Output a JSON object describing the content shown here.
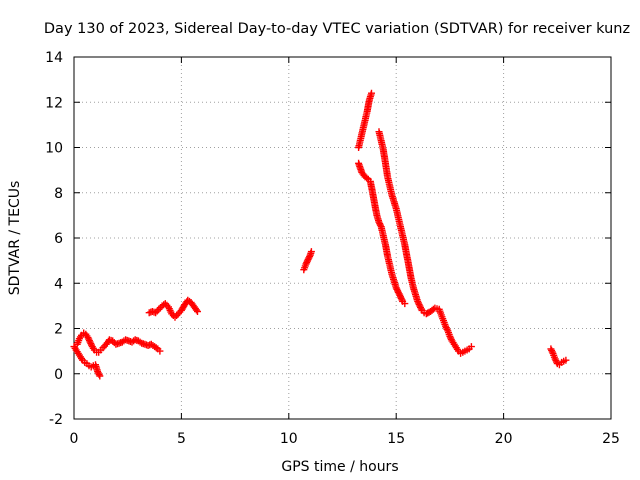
{
  "chart_data": {
    "type": "scatter",
    "title": "Day 130 of 2023, Sidereal Day-to-day VTEC variation (SDTVAR) for receiver kunz",
    "xlabel": "GPS time / hours",
    "ylabel": "SDTVAR / TECUs",
    "xlim": [
      0,
      25
    ],
    "ylim": [
      -2,
      14
    ],
    "x_ticks": [
      "0",
      "5",
      "10",
      "15",
      "20",
      "25"
    ],
    "y_ticks": [
      "-2",
      "0",
      "2",
      "4",
      "6",
      "8",
      "10",
      "12",
      "14"
    ],
    "grid": true,
    "marker": "plus",
    "colors": {
      "series": "#ff0000",
      "grid": "#a0a0a0",
      "frame": "#000000"
    },
    "series": [
      {
        "name": "kunz",
        "segments": [
          {
            "x": [
              0.0,
              0.1,
              0.2,
              0.3,
              0.4,
              0.5,
              0.6,
              0.7,
              0.8,
              0.9,
              1.0,
              1.1,
              1.2
            ],
            "y": [
              1.2,
              1.05,
              0.9,
              0.75,
              0.6,
              0.5,
              0.45,
              0.35,
              0.3,
              0.35,
              0.4,
              0.1,
              -0.1
            ]
          },
          {
            "x": [
              0.15,
              0.25,
              0.35,
              0.45,
              0.55,
              0.65,
              0.75,
              0.85,
              0.95,
              1.05,
              1.15,
              1.25,
              1.35,
              1.5,
              1.65,
              1.8,
              1.95,
              2.1,
              2.25,
              2.4,
              2.55,
              2.7,
              2.85,
              3.0,
              3.15,
              3.3,
              3.45,
              3.6,
              3.75,
              3.9,
              4.0
            ],
            "y": [
              1.3,
              1.55,
              1.7,
              1.8,
              1.75,
              1.6,
              1.4,
              1.2,
              1.05,
              0.95,
              0.95,
              1.05,
              1.15,
              1.3,
              1.5,
              1.45,
              1.3,
              1.35,
              1.4,
              1.5,
              1.45,
              1.4,
              1.5,
              1.45,
              1.35,
              1.3,
              1.25,
              1.3,
              1.2,
              1.1,
              1.0
            ]
          },
          {
            "x": [
              3.5,
              3.65,
              3.8,
              3.95,
              4.1,
              4.25,
              4.4,
              4.55,
              4.7,
              4.85,
              5.0,
              5.15,
              5.3,
              5.45,
              5.6,
              5.75
            ],
            "y": [
              2.7,
              2.75,
              2.7,
              2.85,
              3.0,
              3.1,
              2.95,
              2.65,
              2.5,
              2.65,
              2.8,
              3.05,
              3.25,
              3.15,
              2.95,
              2.75
            ]
          },
          {
            "x": [
              10.7,
              10.8,
              10.9,
              11.0,
              11.05
            ],
            "y": [
              4.6,
              4.85,
              5.05,
              5.25,
              5.4
            ]
          },
          {
            "x": [
              13.25,
              13.35,
              13.45,
              13.55,
              13.65,
              13.75,
              13.85
            ],
            "y": [
              10.0,
              10.4,
              10.8,
              11.2,
              11.6,
              12.1,
              12.4
            ]
          },
          {
            "x": [
              13.25,
              13.4,
              13.55,
              13.7,
              13.8,
              13.9,
              14.0,
              14.1,
              14.2,
              14.3,
              14.4,
              14.5,
              14.6,
              14.7,
              14.8,
              14.9,
              15.0,
              15.1,
              15.2,
              15.3,
              15.4
            ],
            "y": [
              9.3,
              8.9,
              8.7,
              8.6,
              8.5,
              8.0,
              7.5,
              7.0,
              6.7,
              6.5,
              6.1,
              5.7,
              5.2,
              4.8,
              4.4,
              4.1,
              3.8,
              3.6,
              3.4,
              3.2,
              3.1
            ]
          },
          {
            "x": [
              14.2,
              14.3,
              14.4,
              14.5,
              14.6,
              14.7,
              14.8,
              14.9,
              15.0,
              15.1,
              15.2,
              15.3,
              15.4,
              15.5,
              15.6,
              15.7,
              15.8,
              15.9,
              16.0,
              16.1,
              16.2,
              16.3,
              16.4,
              16.6,
              16.8,
              17.0,
              17.1,
              17.2,
              17.3,
              17.4,
              17.5,
              17.6,
              17.7,
              17.8,
              17.9,
              18.0,
              18.1,
              18.2,
              18.3,
              18.4,
              18.5
            ],
            "y": [
              10.7,
              10.3,
              9.9,
              9.3,
              8.7,
              8.3,
              7.9,
              7.6,
              7.3,
              6.9,
              6.5,
              6.1,
              5.7,
              5.2,
              4.7,
              4.2,
              3.8,
              3.5,
              3.2,
              3.0,
              2.8,
              2.7,
              2.65,
              2.75,
              2.9,
              2.85,
              2.6,
              2.35,
              2.1,
              1.9,
              1.65,
              1.45,
              1.3,
              1.15,
              1.0,
              0.9,
              0.95,
              1.0,
              1.05,
              1.1,
              1.2
            ]
          },
          {
            "x": [
              22.2,
              22.3,
              22.4,
              22.5,
              22.6,
              22.7,
              22.8,
              22.9
            ],
            "y": [
              1.1,
              0.9,
              0.65,
              0.45,
              0.4,
              0.5,
              0.55,
              0.6
            ]
          }
        ]
      }
    ]
  }
}
